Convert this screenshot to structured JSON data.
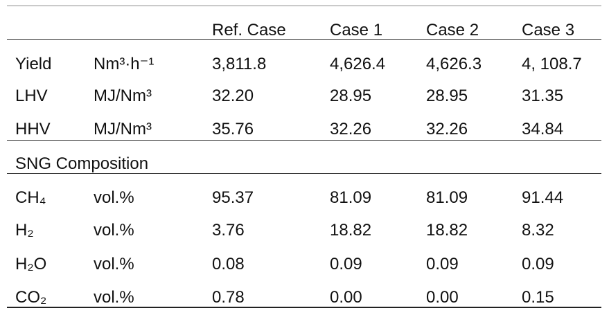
{
  "table": {
    "header": [
      "Ref. Case",
      "Case 1",
      "Case 2",
      "Case 3"
    ],
    "rows": [
      {
        "label": "Yield",
        "unit": "Nm³·h⁻¹",
        "values": [
          "3,811.8",
          "4,626.4",
          "4,626.3",
          "4, 108.7"
        ]
      },
      {
        "label": "LHV",
        "unit": "MJ/Nm³",
        "values": [
          "32.20",
          "28.95",
          "28.95",
          "31.35"
        ]
      },
      {
        "label": "HHV",
        "unit": "MJ/Nm³",
        "values": [
          "35.76",
          "32.26",
          "32.26",
          "34.84"
        ]
      }
    ],
    "section": "SNG Composition",
    "composition_rows": [
      {
        "label": "CH₄",
        "unit": "vol.%",
        "values": [
          "95.37",
          "81.09",
          "81.09",
          "91.44"
        ]
      },
      {
        "label": "H₂",
        "unit": "vol.%",
        "values": [
          "3.76",
          "18.82",
          "18.82",
          "8.32"
        ]
      },
      {
        "label": "H₂O",
        "unit": "vol.%",
        "values": [
          "0.08",
          "0.09",
          "0.09",
          "0.09"
        ]
      },
      {
        "label": "CO₂",
        "unit": "vol.%",
        "values": [
          "0.78",
          "0.00",
          "0.00",
          "0.15"
        ]
      }
    ]
  }
}
